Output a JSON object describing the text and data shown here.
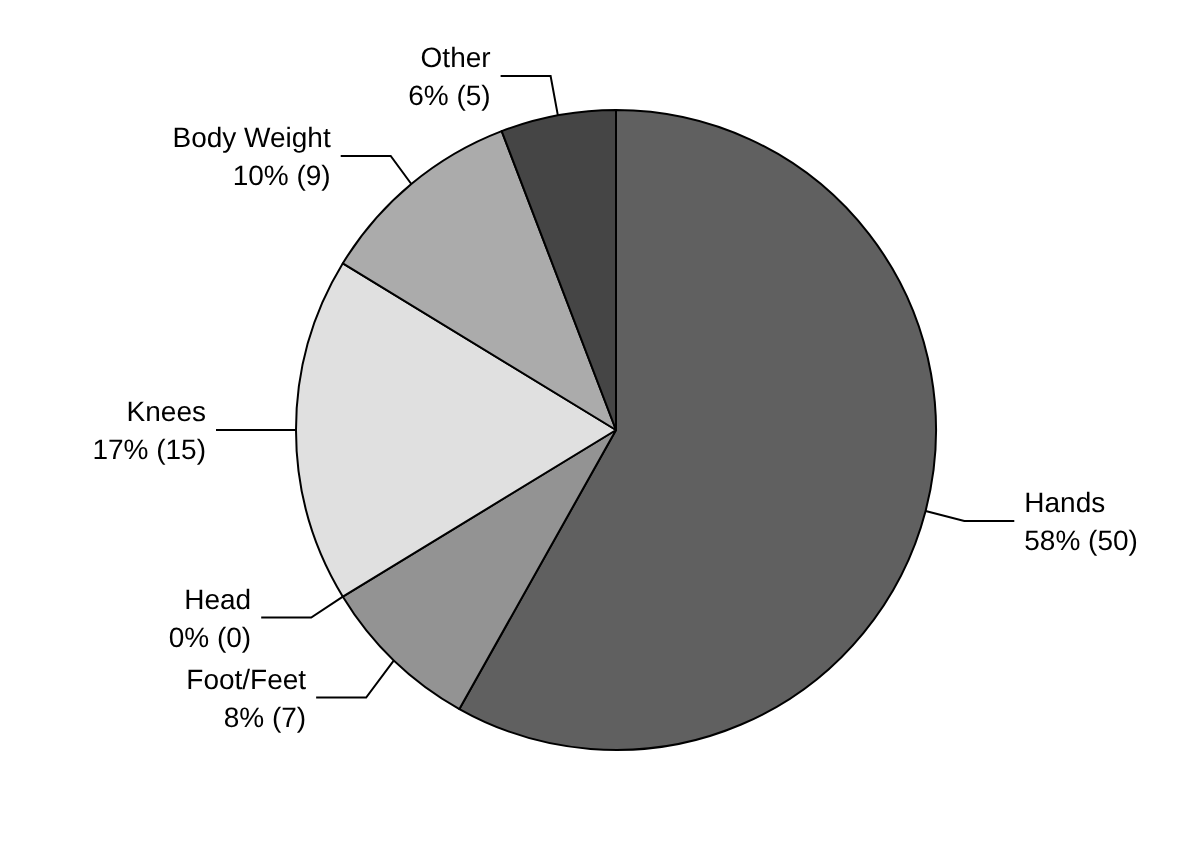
{
  "chart_data": {
    "type": "pie",
    "categories": [
      "Hands",
      "Foot/Feet",
      "Head",
      "Knees",
      "Body Weight",
      "Other"
    ],
    "values": [
      50,
      7,
      0,
      15,
      9,
      5
    ],
    "value_labels": [
      "58% (50)",
      "8% (7)",
      "0% (0)",
      "17% (15)",
      "10% (9)",
      "6% (5)"
    ],
    "colors": [
      "#606060",
      "#939393",
      "#bdbdbd",
      "#e0e0e0",
      "#ababab",
      "#454545"
    ]
  }
}
